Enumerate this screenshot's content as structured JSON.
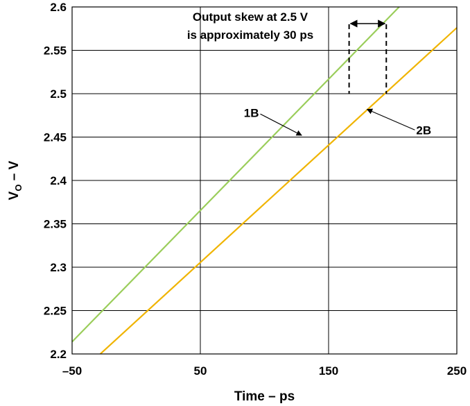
{
  "chart_data": {
    "type": "line",
    "xlabel": "Time – ps",
    "ylabel_main": "V",
    "ylabel_sub": "O",
    "ylabel_rest": " – V",
    "xlim": [
      -50,
      250
    ],
    "ylim": [
      2.2,
      2.6
    ],
    "x_ticks": [
      -50,
      50,
      150,
      250
    ],
    "x_tick_labels": [
      "–50",
      "50",
      "150",
      "250"
    ],
    "x_grid": [
      -50,
      50,
      150,
      250
    ],
    "y_ticks": [
      2.2,
      2.25,
      2.3,
      2.35,
      2.4,
      2.45,
      2.5,
      2.55,
      2.6
    ],
    "y_tick_labels": [
      "2.2",
      "2.25",
      "2.3",
      "2.35",
      "2.4",
      "2.45",
      "2.5",
      "2.55",
      "2.6"
    ],
    "grid": true,
    "series": [
      {
        "name": "1B",
        "color": "#9ACD5A",
        "x": [
          -50,
          205
        ],
        "y": [
          2.214,
          2.6
        ]
      },
      {
        "name": "2B",
        "color": "#F0B400",
        "x": [
          -28,
          250
        ],
        "y": [
          2.2,
          2.576
        ]
      }
    ],
    "annotation": {
      "line1": "Output skew at 2.5 V",
      "line2": "is approximately 30 ps",
      "skew_x": [
        166,
        195
      ],
      "skew_y_top": 2.58,
      "skew_y_bottom": 2.5
    },
    "labels": {
      "one_b": {
        "text": "1B",
        "x": 100,
        "y": 2.475,
        "target_x": 129,
        "target_y": 2.452
      },
      "two_b": {
        "text": "2B",
        "x": 214,
        "y": 2.455,
        "target_x": 180,
        "target_y": 2.482
      }
    }
  }
}
